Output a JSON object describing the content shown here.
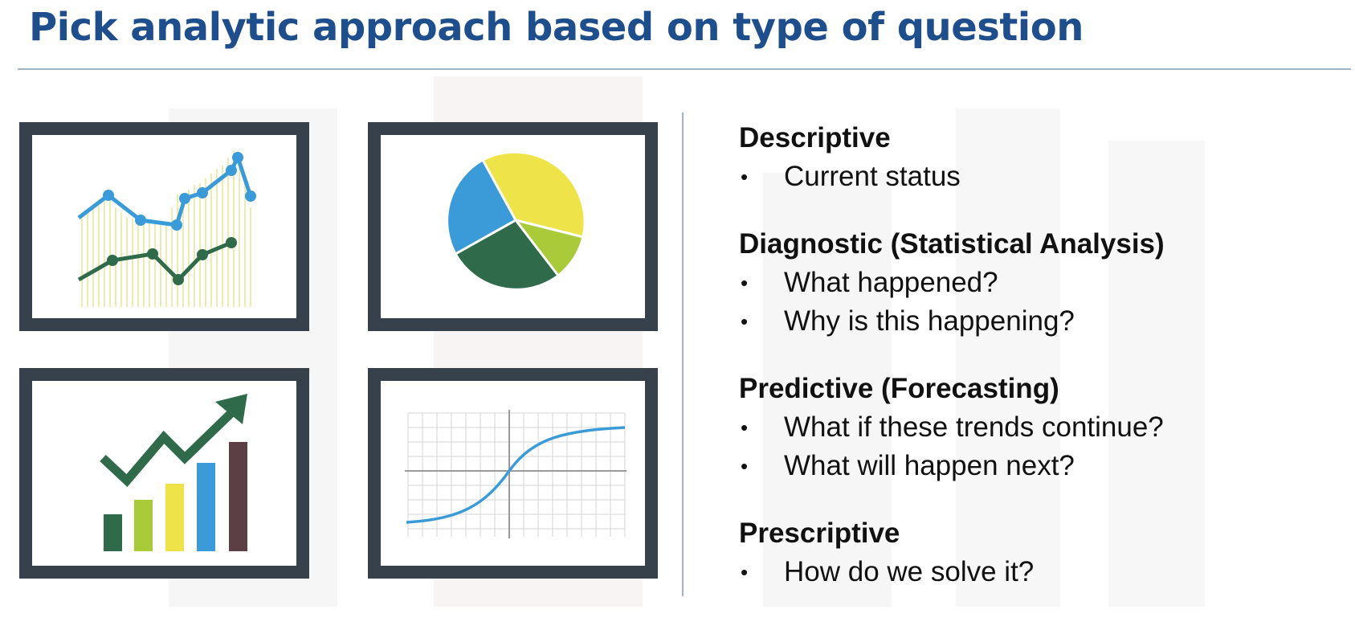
{
  "title": "Pick analytic approach based on type of question",
  "illustrations": [
    {
      "icon": "line-chart-icon"
    },
    {
      "icon": "pie-chart-icon"
    },
    {
      "icon": "growth-bar-chart-icon"
    },
    {
      "icon": "s-curve-graph-icon"
    }
  ],
  "types": [
    {
      "heading": "Descriptive",
      "items": [
        "Current status"
      ]
    },
    {
      "heading": "Diagnostic (Statistical Analysis)",
      "items": [
        "What happened?",
        "Why is this happening?"
      ]
    },
    {
      "heading": "Predictive (Forecasting)",
      "items": [
        "What if these trends continue?",
        "What will happen next?"
      ]
    },
    {
      "heading": "Prescriptive",
      "items": [
        "How do we solve it?"
      ]
    }
  ],
  "colors": {
    "title": "#1e4e8c",
    "frame": "#36414c",
    "blue": "#3b9bd8",
    "yellow": "#eee44a",
    "lime": "#a9cb3a",
    "dark_green": "#2f6b4a",
    "maroon": "#5b3f45"
  }
}
